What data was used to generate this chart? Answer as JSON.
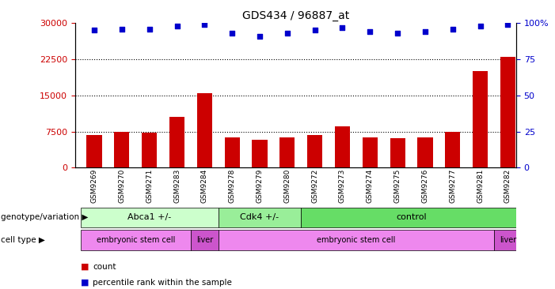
{
  "title": "GDS434 / 96887_at",
  "samples": [
    "GSM9269",
    "GSM9270",
    "GSM9271",
    "GSM9283",
    "GSM9284",
    "GSM9278",
    "GSM9279",
    "GSM9280",
    "GSM9272",
    "GSM9273",
    "GSM9274",
    "GSM9275",
    "GSM9276",
    "GSM9277",
    "GSM9281",
    "GSM9282"
  ],
  "counts": [
    6800,
    7500,
    7200,
    10500,
    15500,
    6200,
    5800,
    6300,
    6700,
    8500,
    6200,
    6100,
    6200,
    7500,
    20000,
    23000
  ],
  "percentile_ranks": [
    95,
    96,
    96,
    98,
    99,
    93,
    91,
    93,
    95,
    97,
    94,
    93,
    94,
    96,
    98,
    99
  ],
  "bar_color": "#cc0000",
  "dot_color": "#0000cc",
  "ylim_left": [
    0,
    30000
  ],
  "ylim_right": [
    0,
    100
  ],
  "yticks_left": [
    0,
    7500,
    15000,
    22500,
    30000
  ],
  "yticks_right": [
    0,
    25,
    50,
    75,
    100
  ],
  "ylabel_right_labels": [
    "0",
    "25",
    "50",
    "75",
    "100%"
  ],
  "grid_lines": [
    7500,
    15000,
    22500
  ],
  "genotype_groups": [
    {
      "label": "Abca1 +/-",
      "start": 0,
      "end": 5,
      "color": "#ccffcc"
    },
    {
      "label": "Cdk4 +/-",
      "start": 5,
      "end": 8,
      "color": "#99ee99"
    },
    {
      "label": "control",
      "start": 8,
      "end": 16,
      "color": "#66dd66"
    }
  ],
  "celltype_groups": [
    {
      "label": "embryonic stem cell",
      "start": 0,
      "end": 4,
      "color": "#ee88ee"
    },
    {
      "label": "liver",
      "start": 4,
      "end": 5,
      "color": "#cc55cc"
    },
    {
      "label": "embryonic stem cell",
      "start": 5,
      "end": 15,
      "color": "#ee88ee"
    },
    {
      "label": "liver",
      "start": 15,
      "end": 16,
      "color": "#cc55cc"
    }
  ],
  "legend_count_color": "#cc0000",
  "legend_dot_color": "#0000cc",
  "genotype_label": "genotype/variation",
  "celltype_label": "cell type",
  "background_color": "#ffffff",
  "plot_bg_color": "#ffffff",
  "tick_label_color_left": "#cc0000",
  "tick_label_color_right": "#0000cc",
  "xlim": [
    -0.7,
    15.3
  ]
}
